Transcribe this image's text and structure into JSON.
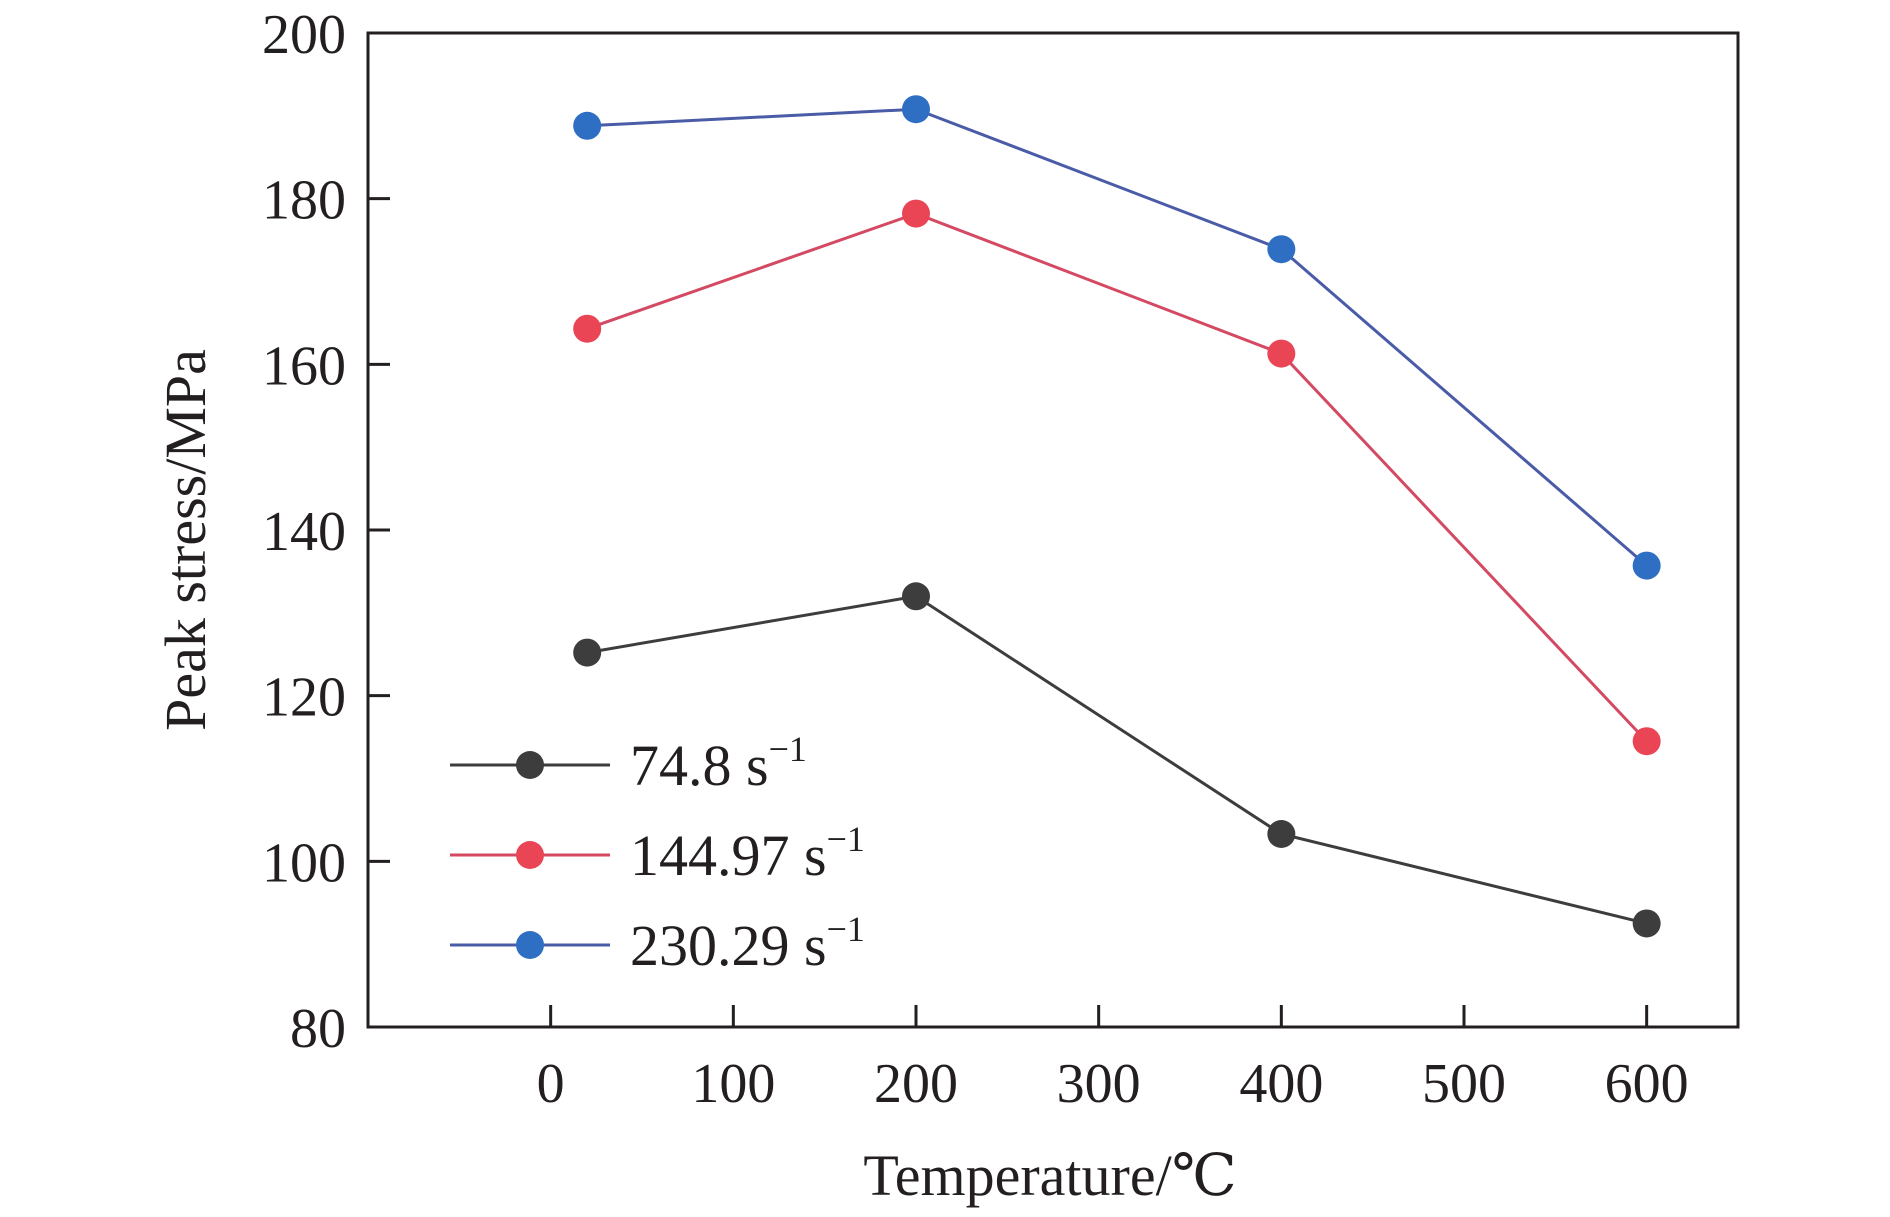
{
  "chart_data": {
    "type": "line",
    "title": "",
    "xlabel": "Temperature/℃",
    "ylabel": "Peak stress/MPa",
    "xlim": [
      -100,
      650
    ],
    "ylim": [
      80,
      200
    ],
    "x_ticks": [
      "0",
      "100",
      "200",
      "300",
      "400",
      "500",
      "600"
    ],
    "y_ticks": [
      "80",
      "100",
      "120",
      "140",
      "160",
      "180",
      "200"
    ],
    "grid": false,
    "legend_position": "bottom-left",
    "series": [
      {
        "name": "74.8 s",
        "name_sup": "−1",
        "color": "#3d3d3d",
        "line_color": "#3d3d3d",
        "x": [
          20,
          200,
          400,
          600
        ],
        "y": [
          125.2,
          132.0,
          103.3,
          92.5
        ]
      },
      {
        "name": "144.97 s",
        "name_sup": "−1",
        "color": "#ea4555",
        "line_color": "#d44a62",
        "x": [
          20,
          200,
          400,
          600
        ],
        "y": [
          164.3,
          178.2,
          161.3,
          114.5
        ]
      },
      {
        "name": "230.29 s",
        "name_sup": "−1",
        "color": "#2f6fc3",
        "line_color": "#4a5ca8",
        "x": [
          20,
          200,
          400,
          600
        ],
        "y": [
          188.8,
          190.8,
          173.9,
          135.7
        ]
      }
    ]
  }
}
